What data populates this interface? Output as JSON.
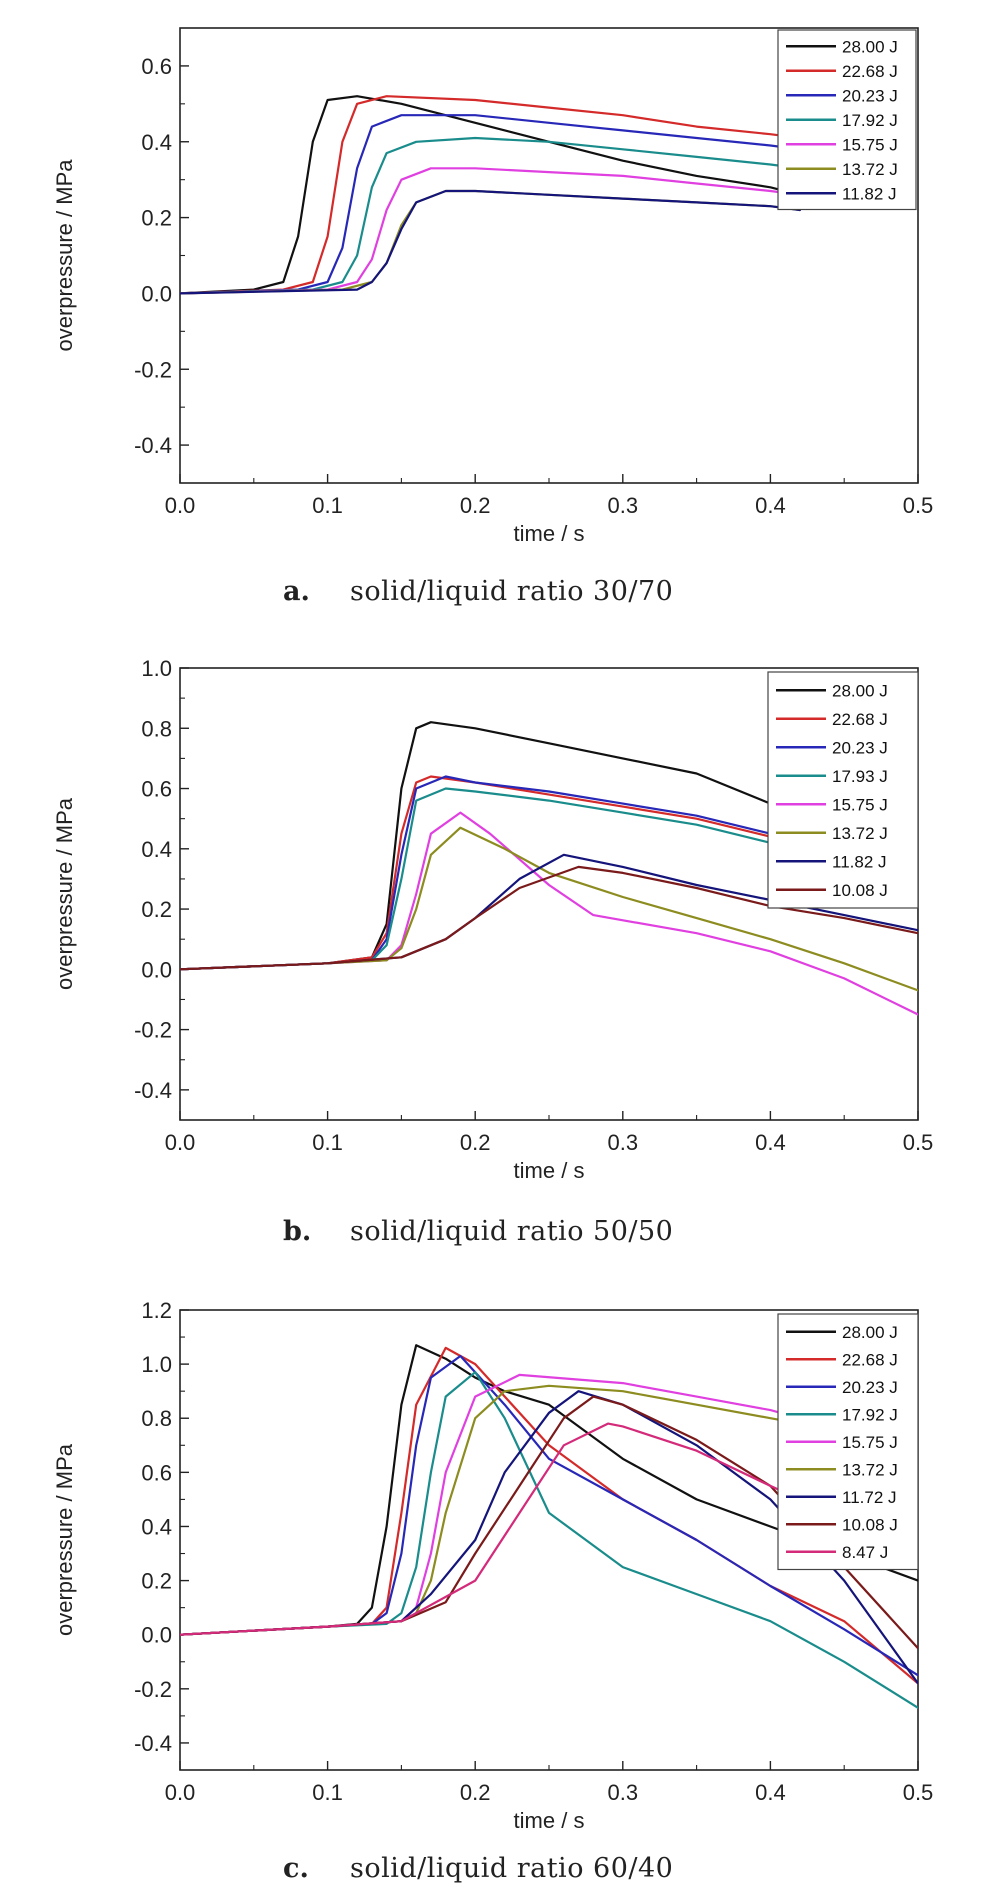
{
  "chart_data": [
    {
      "type": "line",
      "panel": "a.",
      "caption": "solid/liquid ratio 30/70",
      "xlabel": "time / s",
      "ylabel": "overpressure / MPa",
      "xlim": [
        0,
        0.5
      ],
      "ylim": [
        -0.5,
        0.7
      ],
      "xticks": [
        "0.0",
        "0.1",
        "0.2",
        "0.3",
        "0.4",
        "0.5"
      ],
      "yticks": [
        "-0.4",
        "-0.2",
        "0.0",
        "0.2",
        "0.4",
        "0.6"
      ],
      "legend_position": "top-right",
      "series": [
        {
          "name": "28.00 J",
          "color": "#111111",
          "x": [
            0,
            0.05,
            0.07,
            0.08,
            0.09,
            0.1,
            0.12,
            0.15,
            0.2,
            0.25,
            0.3,
            0.35,
            0.4,
            0.42
          ],
          "y": [
            0.0,
            0.01,
            0.03,
            0.15,
            0.4,
            0.51,
            0.52,
            0.5,
            0.45,
            0.4,
            0.35,
            0.31,
            0.28,
            0.26
          ]
        },
        {
          "name": "22.68 J",
          "color": "#d42a2a",
          "x": [
            0,
            0.07,
            0.09,
            0.1,
            0.11,
            0.12,
            0.14,
            0.2,
            0.25,
            0.3,
            0.35,
            0.4,
            0.42
          ],
          "y": [
            0.0,
            0.01,
            0.03,
            0.15,
            0.4,
            0.5,
            0.52,
            0.51,
            0.49,
            0.47,
            0.44,
            0.42,
            0.41
          ]
        },
        {
          "name": "20.23 J",
          "color": "#2828b8",
          "x": [
            0,
            0.08,
            0.1,
            0.11,
            0.12,
            0.13,
            0.15,
            0.2,
            0.25,
            0.3,
            0.35,
            0.4,
            0.42
          ],
          "y": [
            0.0,
            0.01,
            0.03,
            0.12,
            0.33,
            0.44,
            0.47,
            0.47,
            0.45,
            0.43,
            0.41,
            0.39,
            0.38
          ]
        },
        {
          "name": "17.92 J",
          "color": "#1a8c8c",
          "x": [
            0,
            0.09,
            0.11,
            0.12,
            0.13,
            0.14,
            0.16,
            0.2,
            0.25,
            0.3,
            0.35,
            0.4,
            0.42
          ],
          "y": [
            0.0,
            0.01,
            0.03,
            0.1,
            0.28,
            0.37,
            0.4,
            0.41,
            0.4,
            0.38,
            0.36,
            0.34,
            0.33
          ]
        },
        {
          "name": "15.75 J",
          "color": "#e040e0",
          "x": [
            0,
            0.1,
            0.12,
            0.13,
            0.14,
            0.15,
            0.17,
            0.2,
            0.25,
            0.3,
            0.35,
            0.4,
            0.42
          ],
          "y": [
            0.0,
            0.01,
            0.03,
            0.09,
            0.22,
            0.3,
            0.33,
            0.33,
            0.32,
            0.31,
            0.29,
            0.27,
            0.26
          ]
        },
        {
          "name": "13.72 J",
          "color": "#8c8c20",
          "x": [
            0,
            0.11,
            0.13,
            0.14,
            0.15,
            0.16,
            0.18,
            0.2,
            0.25,
            0.3,
            0.35,
            0.4,
            0.42
          ],
          "y": [
            0.0,
            0.01,
            0.03,
            0.08,
            0.18,
            0.24,
            0.27,
            0.27,
            0.26,
            0.25,
            0.24,
            0.23,
            0.22
          ]
        },
        {
          "name": "11.82 J",
          "color": "#14147a",
          "x": [
            0,
            0.12,
            0.13,
            0.14,
            0.15,
            0.16,
            0.18,
            0.2,
            0.25,
            0.3,
            0.35,
            0.4,
            0.42
          ],
          "y": [
            0.0,
            0.01,
            0.03,
            0.08,
            0.17,
            0.24,
            0.27,
            0.27,
            0.26,
            0.25,
            0.24,
            0.23,
            0.22
          ]
        }
      ]
    },
    {
      "type": "line",
      "panel": "b.",
      "caption": "solid/liquid ratio 50/50",
      "xlabel": "time / s",
      "ylabel": "overpressure / MPa",
      "xlim": [
        0,
        0.5
      ],
      "ylim": [
        -0.5,
        1.0
      ],
      "xticks": [
        "0.0",
        "0.1",
        "0.2",
        "0.3",
        "0.4",
        "0.5"
      ],
      "yticks": [
        "-0.4",
        "-0.2",
        "0.0",
        "0.2",
        "0.4",
        "0.6",
        "0.8",
        "1.0"
      ],
      "legend_position": "top-right",
      "series": [
        {
          "name": "28.00 J",
          "color": "#111111",
          "x": [
            0,
            0.1,
            0.13,
            0.14,
            0.15,
            0.16,
            0.17,
            0.2,
            0.25,
            0.3,
            0.35,
            0.4,
            0.42
          ],
          "y": [
            0.0,
            0.02,
            0.04,
            0.15,
            0.6,
            0.8,
            0.82,
            0.8,
            0.75,
            0.7,
            0.65,
            0.55,
            0.52
          ]
        },
        {
          "name": "22.68 J",
          "color": "#d42a2a",
          "x": [
            0,
            0.1,
            0.13,
            0.14,
            0.15,
            0.16,
            0.17,
            0.2,
            0.25,
            0.3,
            0.35,
            0.4,
            0.42
          ],
          "y": [
            0.0,
            0.02,
            0.04,
            0.12,
            0.45,
            0.62,
            0.64,
            0.62,
            0.58,
            0.54,
            0.5,
            0.44,
            0.42
          ]
        },
        {
          "name": "20.23 J",
          "color": "#2828b8",
          "x": [
            0,
            0.1,
            0.13,
            0.14,
            0.15,
            0.16,
            0.18,
            0.2,
            0.25,
            0.3,
            0.35,
            0.4,
            0.42
          ],
          "y": [
            0.0,
            0.02,
            0.03,
            0.1,
            0.38,
            0.6,
            0.64,
            0.62,
            0.59,
            0.55,
            0.51,
            0.45,
            0.42
          ]
        },
        {
          "name": "17.93 J",
          "color": "#1a8c8c",
          "x": [
            0,
            0.1,
            0.13,
            0.14,
            0.15,
            0.16,
            0.18,
            0.2,
            0.25,
            0.3,
            0.35,
            0.4,
            0.42
          ],
          "y": [
            0.0,
            0.02,
            0.03,
            0.08,
            0.3,
            0.56,
            0.6,
            0.59,
            0.56,
            0.52,
            0.48,
            0.42,
            0.4
          ]
        },
        {
          "name": "15.75 J",
          "color": "#e040e0",
          "x": [
            0,
            0.1,
            0.14,
            0.15,
            0.16,
            0.17,
            0.19,
            0.21,
            0.25,
            0.28,
            0.35,
            0.4,
            0.45,
            0.5
          ],
          "y": [
            0.0,
            0.02,
            0.03,
            0.08,
            0.25,
            0.45,
            0.52,
            0.45,
            0.28,
            0.18,
            0.12,
            0.06,
            -0.03,
            -0.15
          ]
        },
        {
          "name": "13.72 J",
          "color": "#8c8c20",
          "x": [
            0,
            0.1,
            0.14,
            0.15,
            0.16,
            0.17,
            0.19,
            0.22,
            0.25,
            0.3,
            0.35,
            0.4,
            0.45,
            0.5
          ],
          "y": [
            0.0,
            0.02,
            0.03,
            0.07,
            0.2,
            0.38,
            0.47,
            0.4,
            0.32,
            0.24,
            0.17,
            0.1,
            0.02,
            -0.07
          ]
        },
        {
          "name": "11.82 J",
          "color": "#14147a",
          "x": [
            0,
            0.1,
            0.15,
            0.18,
            0.2,
            0.23,
            0.26,
            0.3,
            0.35,
            0.4,
            0.45,
            0.5
          ],
          "y": [
            0.0,
            0.02,
            0.04,
            0.1,
            0.17,
            0.3,
            0.38,
            0.34,
            0.28,
            0.23,
            0.18,
            0.13
          ]
        },
        {
          "name": "10.08 J",
          "color": "#7a1a1a",
          "x": [
            0,
            0.1,
            0.15,
            0.18,
            0.2,
            0.23,
            0.27,
            0.3,
            0.35,
            0.4,
            0.45,
            0.5
          ],
          "y": [
            0.0,
            0.02,
            0.04,
            0.1,
            0.17,
            0.27,
            0.34,
            0.32,
            0.27,
            0.21,
            0.17,
            0.12
          ]
        }
      ]
    },
    {
      "type": "line",
      "panel": "c.",
      "caption": "solid/liquid ratio 60/40",
      "xlabel": "time / s",
      "ylabel": "overpressure / MPa",
      "xlim": [
        0,
        0.5
      ],
      "ylim": [
        -0.5,
        1.2
      ],
      "xticks": [
        "0.0",
        "0.1",
        "0.2",
        "0.3",
        "0.4",
        "0.5"
      ],
      "yticks": [
        "-0.4",
        "-0.2",
        "0.0",
        "0.2",
        "0.4",
        "0.6",
        "0.8",
        "1.0",
        "1.2"
      ],
      "legend_position": "top-right",
      "series": [
        {
          "name": "28.00 J",
          "color": "#111111",
          "x": [
            0,
            0.1,
            0.12,
            0.13,
            0.14,
            0.15,
            0.16,
            0.18,
            0.2,
            0.22,
            0.25,
            0.3,
            0.35,
            0.4,
            0.45,
            0.5
          ],
          "y": [
            0.0,
            0.03,
            0.04,
            0.1,
            0.4,
            0.85,
            1.07,
            1.02,
            0.95,
            0.9,
            0.85,
            0.65,
            0.5,
            0.4,
            0.3,
            0.2
          ]
        },
        {
          "name": "22.68 J",
          "color": "#d42a2a",
          "x": [
            0,
            0.1,
            0.13,
            0.14,
            0.15,
            0.16,
            0.18,
            0.2,
            0.25,
            0.3,
            0.35,
            0.4,
            0.45,
            0.5
          ],
          "y": [
            0.0,
            0.03,
            0.04,
            0.1,
            0.45,
            0.85,
            1.06,
            1.0,
            0.7,
            0.5,
            0.35,
            0.18,
            0.05,
            -0.18
          ]
        },
        {
          "name": "20.23 J",
          "color": "#2828b8",
          "x": [
            0,
            0.1,
            0.13,
            0.14,
            0.15,
            0.16,
            0.17,
            0.19,
            0.22,
            0.25,
            0.3,
            0.35,
            0.4,
            0.45,
            0.5
          ],
          "y": [
            0.0,
            0.03,
            0.04,
            0.08,
            0.3,
            0.7,
            0.95,
            1.03,
            0.85,
            0.65,
            0.5,
            0.35,
            0.18,
            0.02,
            -0.15
          ]
        },
        {
          "name": "17.92 J",
          "color": "#1a8c8c",
          "x": [
            0,
            0.1,
            0.14,
            0.15,
            0.16,
            0.17,
            0.18,
            0.2,
            0.22,
            0.25,
            0.3,
            0.35,
            0.4,
            0.45,
            0.5
          ],
          "y": [
            0.0,
            0.03,
            0.04,
            0.08,
            0.25,
            0.6,
            0.88,
            0.97,
            0.8,
            0.45,
            0.25,
            0.15,
            0.05,
            -0.1,
            -0.27
          ]
        },
        {
          "name": "15.75 J",
          "color": "#e040e0",
          "x": [
            0,
            0.1,
            0.15,
            0.16,
            0.17,
            0.18,
            0.2,
            0.23,
            0.3,
            0.35,
            0.4,
            0.42
          ],
          "y": [
            0.0,
            0.03,
            0.05,
            0.1,
            0.3,
            0.6,
            0.88,
            0.96,
            0.93,
            0.88,
            0.83,
            0.8
          ]
        },
        {
          "name": "13.72 J",
          "color": "#8c8c20",
          "x": [
            0,
            0.1,
            0.15,
            0.16,
            0.17,
            0.18,
            0.2,
            0.22,
            0.25,
            0.3,
            0.35,
            0.4,
            0.42
          ],
          "y": [
            0.0,
            0.03,
            0.05,
            0.08,
            0.2,
            0.45,
            0.8,
            0.9,
            0.92,
            0.9,
            0.85,
            0.8,
            0.78
          ]
        },
        {
          "name": "11.72 J",
          "color": "#14147a",
          "x": [
            0,
            0.1,
            0.15,
            0.17,
            0.2,
            0.22,
            0.25,
            0.27,
            0.3,
            0.35,
            0.4,
            0.45,
            0.5
          ],
          "y": [
            0.0,
            0.03,
            0.05,
            0.15,
            0.35,
            0.6,
            0.82,
            0.9,
            0.85,
            0.7,
            0.5,
            0.2,
            -0.18
          ]
        },
        {
          "name": "10.08 J",
          "color": "#7a1a1a",
          "x": [
            0,
            0.1,
            0.15,
            0.18,
            0.2,
            0.23,
            0.26,
            0.28,
            0.3,
            0.35,
            0.4,
            0.45,
            0.5
          ],
          "y": [
            0.0,
            0.03,
            0.05,
            0.12,
            0.3,
            0.55,
            0.8,
            0.88,
            0.85,
            0.72,
            0.55,
            0.25,
            -0.05
          ]
        },
        {
          "name": "8.47 J",
          "color": "#d42a7a",
          "x": [
            0,
            0.1,
            0.15,
            0.2,
            0.23,
            0.26,
            0.29,
            0.3,
            0.35,
            0.4,
            0.42
          ],
          "y": [
            0.0,
            0.03,
            0.05,
            0.2,
            0.45,
            0.7,
            0.78,
            0.77,
            0.68,
            0.55,
            0.5
          ]
        }
      ]
    }
  ]
}
